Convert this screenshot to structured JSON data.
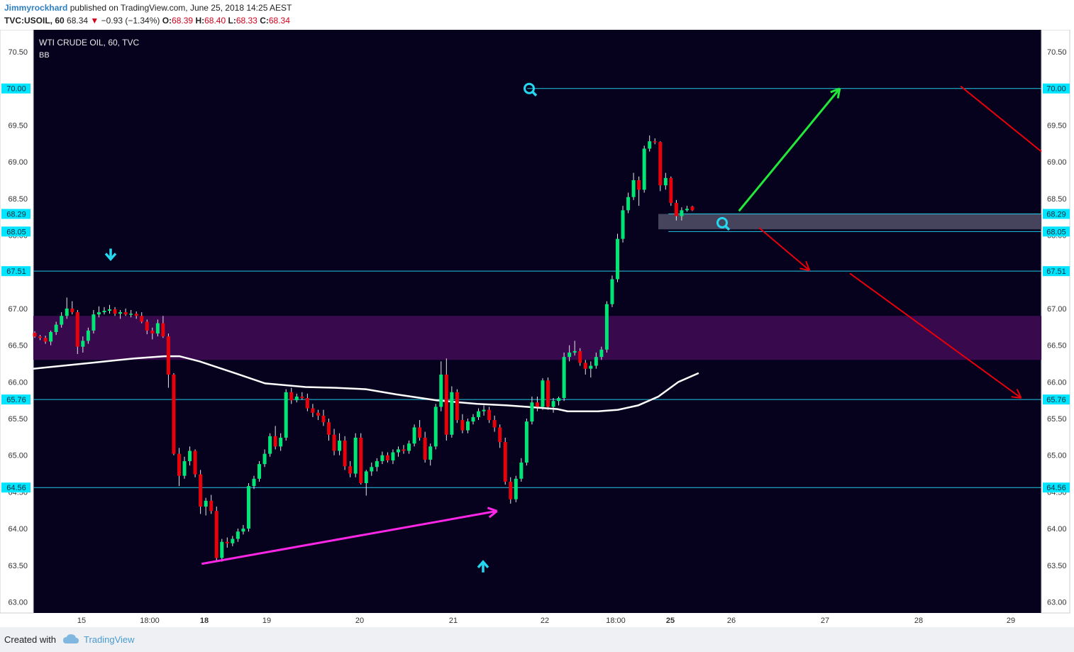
{
  "header": {
    "author": "Jimmyrockhard",
    "published_text": "published on TradingView.com, June 25, 2018 14:25 AEST",
    "symbol": "TVC:USOIL, 60",
    "last": "68.34",
    "change": "−0.93 (−1.34%)",
    "o_label": "O:",
    "o_value": "68.39",
    "h_label": "H:",
    "h_value": "68.40",
    "l_label": "L:",
    "l_value": "68.33",
    "c_label": "C:",
    "c_value": "68.34"
  },
  "legend": {
    "title": "WTI CRUDE OIL, 60, TVC",
    "indicator": "BB"
  },
  "footer": {
    "created_with": "Created with",
    "brand": "TradingView"
  },
  "colors": {
    "background": "#06021e",
    "bullish": "#00e676",
    "bearish": "#e8000b",
    "level_line": "#25c9e6",
    "zone": "#3b0a4f",
    "ma": "#ffffff",
    "label_bg": "#00e5ff"
  },
  "chart_data": {
    "type": "candlestick",
    "title": "WTI CRUDE OIL, 60, TVC",
    "ylim": [
      62.85,
      70.8
    ],
    "y_ticks": [
      "63.00",
      "63.50",
      "64.00",
      "64.50",
      "65.00",
      "65.50",
      "66.00",
      "66.50",
      "67.00",
      "67.50",
      "68.00",
      "68.50",
      "69.00",
      "69.50",
      "70.00",
      "70.50"
    ],
    "x_ticks": [
      "15",
      "18:00",
      "18",
      "19",
      "20",
      "21",
      "22",
      "18:00",
      "25",
      "26",
      "27",
      "28",
      "29"
    ],
    "x_ticks_bold": [
      "18",
      "25"
    ],
    "levels": [
      {
        "price": 70.0,
        "label": "70.00",
        "start": 0.49
      },
      {
        "price": 68.29,
        "label": "68.29",
        "start": 0.63
      },
      {
        "price": 68.05,
        "label": "68.05",
        "start": 0.63
      },
      {
        "price": 67.51,
        "label": "67.51",
        "start": 0
      },
      {
        "price": 65.76,
        "label": "65.76",
        "start": 0
      },
      {
        "price": 64.56,
        "label": "64.56",
        "start": 0
      }
    ],
    "zones": [
      {
        "from": 66.3,
        "to": 66.9,
        "color": "#3b0a4f"
      },
      {
        "from": 68.08,
        "to": 68.29,
        "color": "#4a4860",
        "start": 0.62
      }
    ],
    "bollinger_middle": [
      [
        0,
        66.18
      ],
      [
        0.05,
        66.25
      ],
      [
        0.1,
        66.32
      ],
      [
        0.13,
        66.35
      ],
      [
        0.145,
        66.35
      ],
      [
        0.165,
        66.28
      ],
      [
        0.2,
        66.12
      ],
      [
        0.23,
        65.98
      ],
      [
        0.27,
        65.93
      ],
      [
        0.3,
        65.92
      ],
      [
        0.33,
        65.9
      ],
      [
        0.36,
        65.83
      ],
      [
        0.4,
        65.75
      ],
      [
        0.44,
        65.7
      ],
      [
        0.47,
        65.68
      ],
      [
        0.5,
        65.65
      ],
      [
        0.52,
        65.63
      ],
      [
        0.53,
        65.6
      ],
      [
        0.56,
        65.6
      ],
      [
        0.58,
        65.62
      ],
      [
        0.6,
        65.68
      ],
      [
        0.62,
        65.8
      ],
      [
        0.64,
        66.0
      ],
      [
        0.66,
        66.12
      ]
    ],
    "candles_intraday": [
      [
        66.67,
        66.69,
        66.6,
        66.62
      ],
      [
        66.62,
        66.64,
        66.57,
        66.6
      ],
      [
        66.6,
        66.63,
        66.52,
        66.55
      ],
      [
        66.55,
        66.7,
        66.5,
        66.68
      ],
      [
        66.68,
        66.82,
        66.64,
        66.78
      ],
      [
        66.78,
        66.95,
        66.74,
        66.9
      ],
      [
        66.9,
        67.15,
        66.86,
        67.0
      ],
      [
        67.0,
        67.1,
        66.92,
        66.95
      ],
      [
        66.95,
        66.98,
        66.38,
        66.48
      ],
      [
        66.48,
        66.62,
        66.4,
        66.56
      ],
      [
        66.56,
        66.74,
        66.52,
        66.7
      ],
      [
        66.7,
        66.98,
        66.66,
        66.92
      ],
      [
        66.92,
        67.03,
        66.88,
        66.95
      ],
      [
        66.95,
        67.02,
        66.92,
        66.97
      ],
      [
        66.97,
        67.05,
        66.93,
        66.99
      ],
      [
        66.99,
        67.02,
        66.9,
        66.93
      ],
      [
        66.93,
        66.98,
        66.86,
        66.95
      ],
      [
        66.95,
        67.0,
        66.9,
        66.92
      ],
      [
        66.92,
        66.98,
        66.88,
        66.93
      ],
      [
        66.93,
        66.96,
        66.86,
        66.9
      ],
      [
        66.9,
        66.95,
        66.8,
        66.82
      ],
      [
        66.82,
        66.85,
        66.65,
        66.7
      ],
      [
        66.7,
        66.74,
        66.58,
        66.66
      ],
      [
        66.66,
        66.85,
        66.62,
        66.8
      ],
      [
        66.8,
        66.9,
        66.6,
        66.62
      ],
      [
        66.62,
        66.66,
        65.92,
        66.1
      ],
      [
        66.1,
        66.12,
        65.0,
        65.02
      ],
      [
        65.02,
        65.1,
        64.58,
        64.72
      ],
      [
        64.72,
        64.98,
        64.68,
        64.92
      ],
      [
        64.92,
        65.12,
        64.86,
        65.06
      ],
      [
        65.06,
        65.08,
        64.7,
        64.74
      ],
      [
        64.74,
        64.8,
        64.2,
        64.3
      ],
      [
        64.3,
        64.42,
        64.18,
        64.38
      ],
      [
        64.38,
        64.46,
        64.2,
        64.24
      ],
      [
        64.24,
        64.3,
        63.55,
        63.6
      ],
      [
        63.6,
        63.86,
        63.55,
        63.82
      ],
      [
        63.82,
        63.88,
        63.74,
        63.8
      ],
      [
        63.8,
        63.9,
        63.76,
        63.86
      ],
      [
        63.86,
        64.0,
        63.82,
        63.96
      ],
      [
        63.96,
        64.05,
        63.92,
        64.0
      ],
      [
        64.0,
        64.62,
        63.96,
        64.58
      ],
      [
        64.58,
        64.72,
        64.54,
        64.68
      ],
      [
        64.68,
        64.92,
        64.64,
        64.88
      ],
      [
        64.88,
        65.08,
        64.84,
        65.02
      ],
      [
        65.02,
        65.3,
        64.98,
        65.26
      ],
      [
        65.26,
        65.4,
        65.08,
        65.12
      ],
      [
        65.12,
        65.3,
        65.06,
        65.24
      ],
      [
        65.24,
        65.9,
        65.2,
        65.86
      ],
      [
        65.86,
        65.92,
        65.7,
        65.75
      ],
      [
        65.75,
        65.84,
        65.72,
        65.8
      ],
      [
        65.8,
        65.86,
        65.76,
        65.78
      ],
      [
        65.78,
        65.84,
        65.6,
        65.64
      ],
      [
        65.64,
        65.7,
        65.52,
        65.58
      ],
      [
        65.58,
        65.62,
        65.48,
        65.54
      ],
      [
        65.54,
        65.62,
        65.4,
        65.45
      ],
      [
        65.45,
        65.5,
        65.2,
        65.28
      ],
      [
        65.28,
        65.36,
        65.0,
        65.06
      ],
      [
        65.06,
        65.3,
        65.0,
        65.2
      ],
      [
        65.2,
        65.26,
        64.8,
        64.85
      ],
      [
        64.85,
        64.92,
        64.7,
        64.75
      ],
      [
        64.75,
        65.3,
        64.7,
        65.24
      ],
      [
        65.24,
        65.3,
        64.6,
        64.62
      ],
      [
        64.62,
        64.8,
        64.45,
        64.78
      ],
      [
        64.78,
        64.9,
        64.72,
        64.84
      ],
      [
        64.84,
        64.96,
        64.78,
        64.92
      ],
      [
        64.92,
        65.05,
        64.88,
        65.0
      ],
      [
        65.0,
        65.04,
        64.9,
        64.93
      ],
      [
        64.93,
        65.08,
        64.88,
        65.04
      ],
      [
        65.04,
        65.12,
        64.98,
        65.08
      ],
      [
        65.08,
        65.14,
        65.02,
        65.06
      ],
      [
        65.06,
        65.2,
        65.02,
        65.16
      ],
      [
        65.16,
        65.42,
        65.12,
        65.38
      ],
      [
        65.38,
        65.48,
        65.2,
        65.24
      ],
      [
        65.24,
        65.32,
        64.9,
        64.94
      ],
      [
        64.94,
        65.16,
        64.86,
        65.12
      ],
      [
        65.12,
        65.7,
        65.08,
        65.66
      ],
      [
        65.66,
        66.28,
        65.6,
        66.1
      ],
      [
        66.1,
        66.32,
        65.2,
        65.28
      ],
      [
        65.28,
        65.94,
        65.24,
        65.86
      ],
      [
        65.86,
        65.9,
        65.44,
        65.48
      ],
      [
        65.48,
        65.56,
        65.3,
        65.34
      ],
      [
        65.34,
        65.5,
        65.3,
        65.46
      ],
      [
        65.46,
        65.56,
        65.42,
        65.52
      ],
      [
        65.52,
        65.64,
        65.48,
        65.6
      ],
      [
        65.6,
        65.68,
        65.54,
        65.62
      ],
      [
        65.62,
        65.66,
        65.44,
        65.48
      ],
      [
        65.48,
        65.54,
        65.32,
        65.38
      ],
      [
        65.38,
        65.42,
        65.1,
        65.18
      ],
      [
        65.18,
        65.24,
        64.6,
        64.64
      ],
      [
        64.64,
        64.7,
        64.34,
        64.4
      ],
      [
        64.4,
        64.72,
        64.36,
        64.68
      ],
      [
        64.68,
        64.96,
        64.64,
        64.9
      ],
      [
        64.9,
        65.5,
        64.86,
        65.46
      ],
      [
        65.46,
        65.8,
        65.42,
        65.72
      ],
      [
        65.72,
        65.8,
        65.6,
        65.66
      ],
      [
        65.66,
        66.05,
        65.62,
        66.02
      ],
      [
        66.02,
        66.06,
        65.62,
        65.66
      ],
      [
        65.66,
        65.78,
        65.58,
        65.74
      ],
      [
        65.74,
        65.8,
        65.68,
        65.78
      ],
      [
        65.78,
        66.4,
        65.74,
        66.34
      ],
      [
        66.34,
        66.5,
        66.28,
        66.4
      ],
      [
        66.4,
        66.56,
        66.36,
        66.42
      ],
      [
        66.42,
        66.46,
        66.22,
        66.26
      ],
      [
        66.26,
        66.3,
        66.1,
        66.18
      ],
      [
        66.18,
        66.28,
        66.06,
        66.22
      ],
      [
        66.22,
        66.4,
        66.18,
        66.34
      ],
      [
        66.34,
        66.48,
        66.3,
        66.44
      ],
      [
        66.44,
        67.1,
        66.4,
        67.06
      ],
      [
        67.06,
        67.45,
        67.02,
        67.4
      ],
      [
        67.4,
        68.02,
        67.36,
        67.95
      ],
      [
        67.95,
        68.4,
        67.9,
        68.34
      ],
      [
        68.34,
        68.58,
        68.3,
        68.52
      ],
      [
        68.52,
        68.85,
        68.48,
        68.75
      ],
      [
        68.75,
        68.8,
        68.4,
        68.62
      ],
      [
        68.62,
        69.22,
        68.58,
        69.18
      ],
      [
        69.18,
        69.36,
        69.14,
        69.28
      ],
      [
        69.28,
        69.32,
        69.24,
        69.27
      ],
      [
        69.27,
        69.28,
        68.6,
        68.68
      ],
      [
        68.68,
        68.85,
        68.62,
        68.78
      ],
      [
        68.78,
        68.8,
        68.4,
        68.44
      ],
      [
        68.44,
        68.48,
        68.2,
        68.26
      ],
      [
        68.26,
        68.38,
        68.2,
        68.34
      ],
      [
        68.34,
        68.4,
        68.32,
        68.36
      ],
      [
        68.39,
        68.4,
        68.33,
        68.34
      ]
    ],
    "annotations": {
      "down_arrow_price": 67.74,
      "up_arrow_price": 63.48,
      "magnifier_top_price": 70.0,
      "magnifier_mid_price": 68.17,
      "trendline": [
        [
          0.167,
          63.52
        ],
        [
          0.46,
          64.24
        ]
      ],
      "green_arrow": [
        [
          0.7,
          68.33
        ],
        [
          0.8,
          70.0
        ]
      ],
      "red_arrows": [
        [
          [
            0.72,
            68.1
          ],
          [
            0.77,
            67.52
          ]
        ],
        [
          [
            0.81,
            67.48
          ],
          [
            0.98,
            65.78
          ]
        ]
      ],
      "red_line": [
        [
          0.92,
          70.03
        ],
        [
          1.0,
          69.14
        ]
      ]
    }
  }
}
